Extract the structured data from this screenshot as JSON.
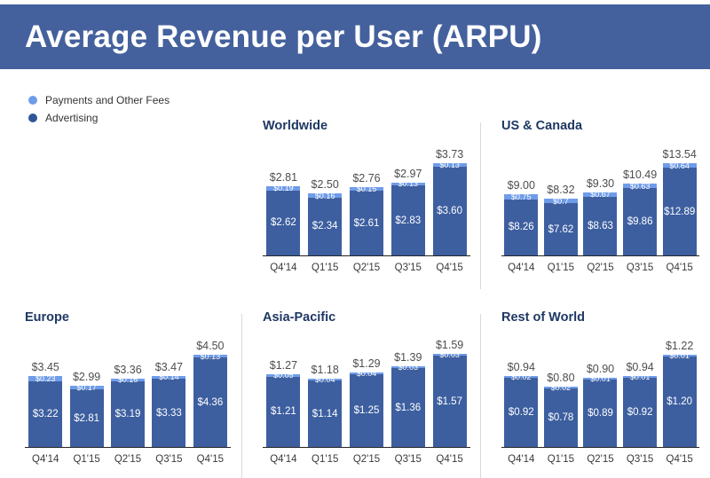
{
  "header": {
    "title": "Average Revenue per User (ARPU)"
  },
  "legend": {
    "items": [
      {
        "label": "Payments and Other Fees",
        "color": "#6f9ce9"
      },
      {
        "label": "Advertising",
        "color": "#2e5596"
      }
    ],
    "position": "top-left"
  },
  "colors": {
    "banner": "#44619d",
    "advertising_bar": "#3d5fa0",
    "payments_bar": "#6f9ce9",
    "chart_title": "#1f3864",
    "total_label": "#4d4d4d"
  },
  "chart_data": [
    {
      "type": "bar",
      "stacked": true,
      "title": "Worldwide",
      "categories": [
        "Q4'14",
        "Q1'15",
        "Q2'15",
        "Q3'15",
        "Q4'15"
      ],
      "series": [
        {
          "name": "Advertising",
          "color": "#3d5fa0",
          "values": [
            2.62,
            2.34,
            2.61,
            2.83,
            3.6
          ],
          "labels": [
            "$2.62",
            "$2.34",
            "$2.61",
            "$2.83",
            "$3.60"
          ]
        },
        {
          "name": "Payments and Other Fees",
          "color": "#6f9ce9",
          "values": [
            0.19,
            0.16,
            0.15,
            0.13,
            0.13
          ],
          "labels": [
            "$0.19",
            "$0.16",
            "$0.15",
            "$0.13",
            "$0.13"
          ]
        }
      ],
      "totals": [
        2.81,
        2.5,
        2.76,
        2.97,
        3.73
      ],
      "total_labels": [
        "$2.81",
        "$2.50",
        "$2.76",
        "$2.97",
        "$3.73"
      ]
    },
    {
      "type": "bar",
      "stacked": true,
      "title": "US & Canada",
      "categories": [
        "Q4'14",
        "Q1'15",
        "Q2'15",
        "Q3'15",
        "Q4'15"
      ],
      "series": [
        {
          "name": "Advertising",
          "color": "#3d5fa0",
          "values": [
            8.26,
            7.62,
            8.63,
            9.86,
            12.89
          ],
          "labels": [
            "$8.26",
            "$7.62",
            "$8.63",
            "$9.86",
            "$12.89"
          ]
        },
        {
          "name": "Payments and Other Fees",
          "color": "#6f9ce9",
          "values": [
            0.75,
            0.7,
            0.67,
            0.63,
            0.64
          ],
          "labels": [
            "$0.75",
            "$0.7",
            "$0.67",
            "$0.63",
            "$0.64"
          ]
        }
      ],
      "totals": [
        9.0,
        8.32,
        9.3,
        10.49,
        13.54
      ],
      "total_labels": [
        "$9.00",
        "$8.32",
        "$9.30",
        "$10.49",
        "$13.54"
      ]
    },
    {
      "type": "bar",
      "stacked": true,
      "title": "Europe",
      "categories": [
        "Q4'14",
        "Q1'15",
        "Q2'15",
        "Q3'15",
        "Q4'15"
      ],
      "series": [
        {
          "name": "Advertising",
          "color": "#3d5fa0",
          "values": [
            3.22,
            2.81,
            3.19,
            3.33,
            4.36
          ],
          "labels": [
            "$3.22",
            "$2.81",
            "$3.19",
            "$3.33",
            "$4.36"
          ]
        },
        {
          "name": "Payments and Other Fees",
          "color": "#6f9ce9",
          "values": [
            0.23,
            0.17,
            0.16,
            0.14,
            0.13
          ],
          "labels": [
            "$0.23",
            "$0.17",
            "$0.16",
            "$0.14",
            "$0.13"
          ]
        }
      ],
      "totals": [
        3.45,
        2.99,
        3.36,
        3.47,
        4.5
      ],
      "total_labels": [
        "$3.45",
        "$2.99",
        "$3.36",
        "$3.47",
        "$4.50"
      ]
    },
    {
      "type": "bar",
      "stacked": true,
      "title": "Asia-Pacific",
      "categories": [
        "Q4'14",
        "Q1'15",
        "Q2'15",
        "Q3'15",
        "Q4'15"
      ],
      "series": [
        {
          "name": "Advertising",
          "color": "#3d5fa0",
          "values": [
            1.21,
            1.14,
            1.25,
            1.36,
            1.57
          ],
          "labels": [
            "$1.21",
            "$1.14",
            "$1.25",
            "$1.36",
            "$1.57"
          ]
        },
        {
          "name": "Payments and Other Fees",
          "color": "#6f9ce9",
          "values": [
            0.05,
            0.04,
            0.04,
            0.03,
            0.03
          ],
          "labels": [
            "$0.05",
            "$0.04",
            "$0.04",
            "$0.03",
            "$0.03"
          ]
        }
      ],
      "totals": [
        1.27,
        1.18,
        1.29,
        1.39,
        1.59
      ],
      "total_labels": [
        "$1.27",
        "$1.18",
        "$1.29",
        "$1.39",
        "$1.59"
      ]
    },
    {
      "type": "bar",
      "stacked": true,
      "title": "Rest of World",
      "categories": [
        "Q4'14",
        "Q1'15",
        "Q2'15",
        "Q3'15",
        "Q4'15"
      ],
      "series": [
        {
          "name": "Advertising",
          "color": "#3d5fa0",
          "values": [
            0.92,
            0.78,
            0.89,
            0.92,
            1.2
          ],
          "labels": [
            "$0.92",
            "$0.78",
            "$0.89",
            "$0.92",
            "$1.20"
          ]
        },
        {
          "name": "Payments and Other Fees",
          "color": "#6f9ce9",
          "values": [
            0.02,
            0.02,
            0.01,
            0.01,
            0.01
          ],
          "labels": [
            "$0.02",
            "$0.02",
            "$0.01",
            "$0.01",
            "$0.01"
          ]
        }
      ],
      "totals": [
        0.94,
        0.8,
        0.9,
        0.94,
        1.22
      ],
      "total_labels": [
        "$0.94",
        "$0.80",
        "$0.90",
        "$0.94",
        "$1.22"
      ]
    }
  ]
}
